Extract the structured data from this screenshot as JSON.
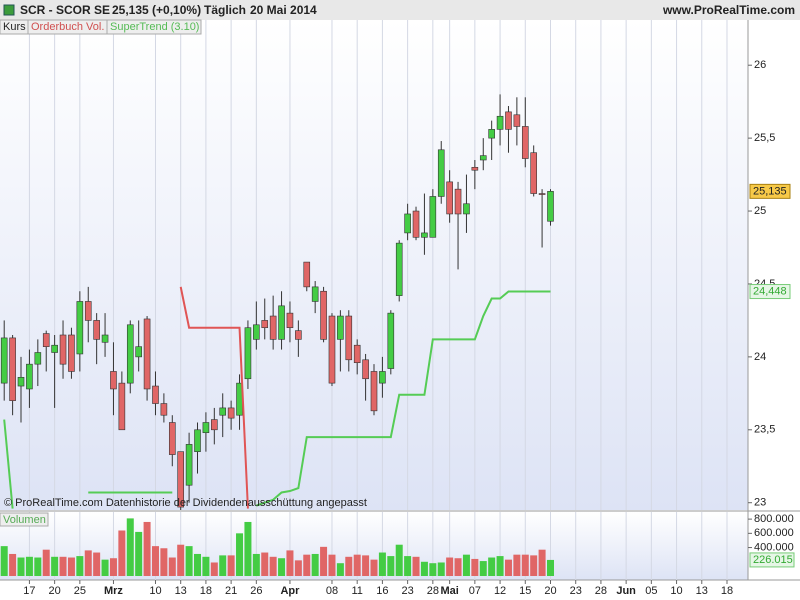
{
  "header": {
    "symbol": "SCR - SCOR SE",
    "quote": "25,135 (+0,10%)",
    "period": "Täglich",
    "date": "20 Mai 2014",
    "site": "www.ProRealTime.com",
    "tabs": [
      "Kurs",
      "Orderbuch Vol."
    ],
    "footer": "© ProRealTime.com Datenhistorie der Dividendenausschüttung angepasst"
  },
  "chart_data": [
    {
      "type": "candlestick",
      "categories": [
        null,
        null,
        null,
        "17",
        null,
        null,
        "20",
        null,
        null,
        "25",
        null,
        null,
        null,
        "Mrz",
        null,
        null,
        null,
        null,
        "10",
        null,
        null,
        "13",
        null,
        null,
        "18",
        null,
        null,
        "21",
        null,
        null,
        "26",
        null,
        null,
        null,
        "Apr",
        null,
        null,
        null,
        null,
        "08",
        null,
        null,
        "11",
        null,
        null,
        "16",
        null,
        null,
        "23",
        null,
        null,
        "28",
        null,
        "Mai",
        null,
        null,
        "07",
        null,
        null,
        "12",
        null,
        null,
        "15",
        null,
        null,
        "20",
        null,
        null,
        "23",
        null,
        null,
        "28",
        null,
        null,
        "Jun",
        null,
        null,
        "05",
        null,
        null,
        "10",
        null,
        null,
        "13",
        null,
        null,
        "18",
        null,
        null
      ],
      "open": [
        23.82,
        24.13,
        23.8,
        23.78,
        23.95,
        24.16,
        24.03,
        24.15,
        24.15,
        24.02,
        24.38,
        24.25,
        24.1,
        23.9,
        23.82,
        23.82,
        24.0,
        24.26,
        23.8,
        23.68,
        23.55,
        23.35,
        23.12,
        23.35,
        23.48,
        23.57,
        23.6,
        23.65,
        23.6,
        23.85,
        24.12,
        24.25,
        24.28,
        24.12,
        24.3,
        24.18,
        24.65,
        24.38,
        24.45,
        24.28,
        24.12,
        24.28,
        24.08,
        23.98,
        23.9,
        23.82,
        23.92,
        24.42,
        24.85,
        25.0,
        24.82,
        24.82,
        25.1,
        25.2,
        25.15,
        24.98,
        25.3,
        25.35,
        25.5,
        25.56,
        25.68,
        25.66,
        25.58,
        25.4,
        25.12,
        24.93,
        null,
        null,
        null,
        null,
        null,
        null,
        null,
        null,
        null,
        null,
        null,
        null,
        null,
        null,
        null,
        null,
        null,
        null,
        null,
        null,
        null,
        null,
        null
      ],
      "high": [
        24.25,
        24.15,
        24.0,
        24.05,
        24.12,
        24.18,
        24.15,
        24.25,
        24.2,
        24.45,
        24.48,
        24.3,
        24.3,
        24.1,
        23.9,
        24.25,
        24.25,
        24.28,
        23.9,
        23.75,
        23.6,
        23.35,
        23.48,
        23.55,
        23.62,
        23.65,
        23.75,
        23.7,
        23.88,
        24.25,
        24.38,
        24.4,
        24.42,
        24.45,
        24.38,
        24.25,
        24.65,
        24.52,
        24.48,
        24.3,
        24.32,
        24.32,
        24.12,
        24.02,
        23.95,
        24.0,
        24.32,
        24.8,
        25.05,
        25.03,
        25.12,
        25.15,
        25.48,
        25.28,
        25.2,
        25.25,
        25.35,
        25.5,
        25.62,
        25.8,
        25.72,
        25.78,
        25.78,
        25.45,
        25.15,
        25.15,
        null,
        null,
        null,
        null,
        null,
        null,
        null,
        null,
        null,
        null,
        null,
        null,
        null,
        null,
        null,
        null,
        null,
        null,
        null,
        null,
        null,
        null,
        null
      ],
      "low": [
        23.7,
        23.6,
        23.55,
        23.65,
        23.8,
        23.9,
        23.65,
        23.85,
        23.85,
        23.9,
        24.1,
        23.95,
        24.0,
        23.6,
        23.5,
        23.75,
        23.9,
        23.7,
        23.6,
        23.55,
        23.25,
        22.95,
        23.0,
        23.2,
        23.35,
        23.4,
        23.45,
        23.5,
        23.5,
        23.78,
        24.05,
        24.12,
        24.05,
        24.05,
        24.1,
        24.0,
        24.45,
        24.3,
        24.1,
        23.8,
        23.9,
        23.9,
        23.88,
        23.7,
        23.6,
        23.72,
        23.88,
        24.38,
        24.8,
        24.8,
        24.7,
        24.82,
        25.05,
        24.92,
        24.6,
        24.85,
        25.15,
        25.28,
        25.35,
        25.45,
        25.4,
        25.45,
        25.3,
        25.1,
        24.75,
        24.9,
        null,
        null,
        null,
        null,
        null,
        null,
        null,
        null,
        null,
        null,
        null,
        null,
        null,
        null,
        null,
        null,
        null,
        null,
        null,
        null,
        null,
        null,
        null
      ],
      "close": [
        24.13,
        23.7,
        23.86,
        23.95,
        24.03,
        24.07,
        24.08,
        23.95,
        23.9,
        24.38,
        24.25,
        24.12,
        24.15,
        23.78,
        23.5,
        24.22,
        24.07,
        23.78,
        23.68,
        23.6,
        23.33,
        22.97,
        23.4,
        23.5,
        23.55,
        23.5,
        23.65,
        23.58,
        23.82,
        24.2,
        24.22,
        24.2,
        24.12,
        24.35,
        24.2,
        24.12,
        24.48,
        24.48,
        24.12,
        23.82,
        24.28,
        23.98,
        23.96,
        23.85,
        23.63,
        23.9,
        24.3,
        24.78,
        24.98,
        24.82,
        24.85,
        25.1,
        25.42,
        24.98,
        24.98,
        25.05,
        25.28,
        25.38,
        25.56,
        25.65,
        25.56,
        25.58,
        25.36,
        25.12,
        25.12,
        25.135,
        null,
        null,
        null,
        null,
        null,
        null,
        null,
        null,
        null,
        null,
        null,
        null,
        null,
        null,
        null,
        null,
        null,
        null,
        null,
        null,
        null,
        null,
        null
      ],
      "last_label": "25,135",
      "up_color": "#44cc44",
      "down_color": "#e06666",
      "supertrend": {
        "name": "SuperTrend (3.10)",
        "up_color": "#55cc55",
        "down_color": "#e05555",
        "last_label": "24,448",
        "up": [
          23.57,
          22.96,
          null,
          null,
          null,
          null,
          null,
          null,
          null,
          null,
          23.07,
          23.07,
          23.07,
          23.07,
          23.07,
          23.07,
          23.07,
          23.07,
          23.07,
          23.07,
          23.07,
          null,
          null,
          null,
          null,
          null,
          null,
          null,
          null,
          null,
          22.98,
          23.0,
          23.02,
          23.07,
          23.08,
          23.1,
          23.45,
          23.45,
          23.45,
          23.45,
          23.45,
          23.45,
          23.45,
          23.45,
          23.45,
          23.45,
          23.45,
          23.74,
          23.74,
          23.74,
          23.74,
          24.12,
          24.12,
          24.12,
          24.12,
          24.12,
          24.12,
          24.28,
          24.4,
          24.4,
          24.448,
          24.448,
          24.448,
          24.448,
          24.448,
          24.448,
          null,
          null,
          null,
          null,
          null,
          null,
          null,
          null,
          null,
          null,
          null,
          null,
          null,
          null,
          null,
          null,
          null,
          null,
          null,
          null,
          null,
          null,
          null
        ],
        "down": [
          null,
          null,
          null,
          null,
          null,
          null,
          null,
          null,
          null,
          null,
          null,
          null,
          null,
          null,
          null,
          null,
          null,
          null,
          null,
          null,
          null,
          24.48,
          24.2,
          24.2,
          24.2,
          24.2,
          24.2,
          24.2,
          24.2,
          22.96,
          null,
          null,
          null,
          null,
          null,
          null,
          null,
          null,
          null,
          null,
          null,
          null,
          null,
          null,
          null,
          null,
          null,
          null,
          null,
          null,
          null,
          null,
          null,
          null,
          null,
          null,
          null,
          null,
          null,
          null,
          null,
          null,
          null,
          null,
          null,
          null,
          null,
          null,
          null,
          null,
          null,
          null,
          null,
          null,
          null,
          null,
          null,
          null,
          null,
          null,
          null,
          null,
          null,
          null,
          null,
          null,
          null,
          null,
          null
        ]
      },
      "ylim": [
        22.95,
        26.31
      ],
      "yticks": [
        23,
        {
          "value": 23.5,
          "label": "23,5"
        },
        24,
        {
          "value": 24.5,
          "label": "24,5"
        },
        25,
        {
          "value": 25.5,
          "label": "25,5"
        },
        26
      ],
      "grid": true
    },
    {
      "type": "bar",
      "title": "Volumen",
      "values": [
        420000,
        310000,
        260000,
        270000,
        260000,
        370000,
        270000,
        270000,
        260000,
        280000,
        360000,
        330000,
        230000,
        250000,
        640000,
        810000,
        620000,
        760000,
        420000,
        390000,
        260000,
        440000,
        420000,
        310000,
        270000,
        190000,
        290000,
        290000,
        600000,
        760000,
        310000,
        330000,
        270000,
        250000,
        360000,
        220000,
        300000,
        310000,
        410000,
        300000,
        180000,
        270000,
        300000,
        290000,
        230000,
        330000,
        280000,
        440000,
        280000,
        270000,
        200000,
        180000,
        190000,
        260000,
        250000,
        300000,
        240000,
        210000,
        260000,
        280000,
        230000,
        300000,
        300000,
        290000,
        370000,
        226015,
        null,
        null,
        null,
        null,
        null,
        null,
        null,
        null,
        null,
        null,
        null,
        null,
        null,
        null,
        null,
        null,
        null,
        null,
        null,
        null,
        null,
        null,
        null
      ],
      "last_label": "226.015",
      "ylim": [
        0,
        900000
      ],
      "yticks": [
        {
          "value": 400000,
          "label": "400.000"
        },
        {
          "value": 600000,
          "label": "600.000"
        },
        {
          "value": 800000,
          "label": "800.000"
        }
      ]
    }
  ]
}
